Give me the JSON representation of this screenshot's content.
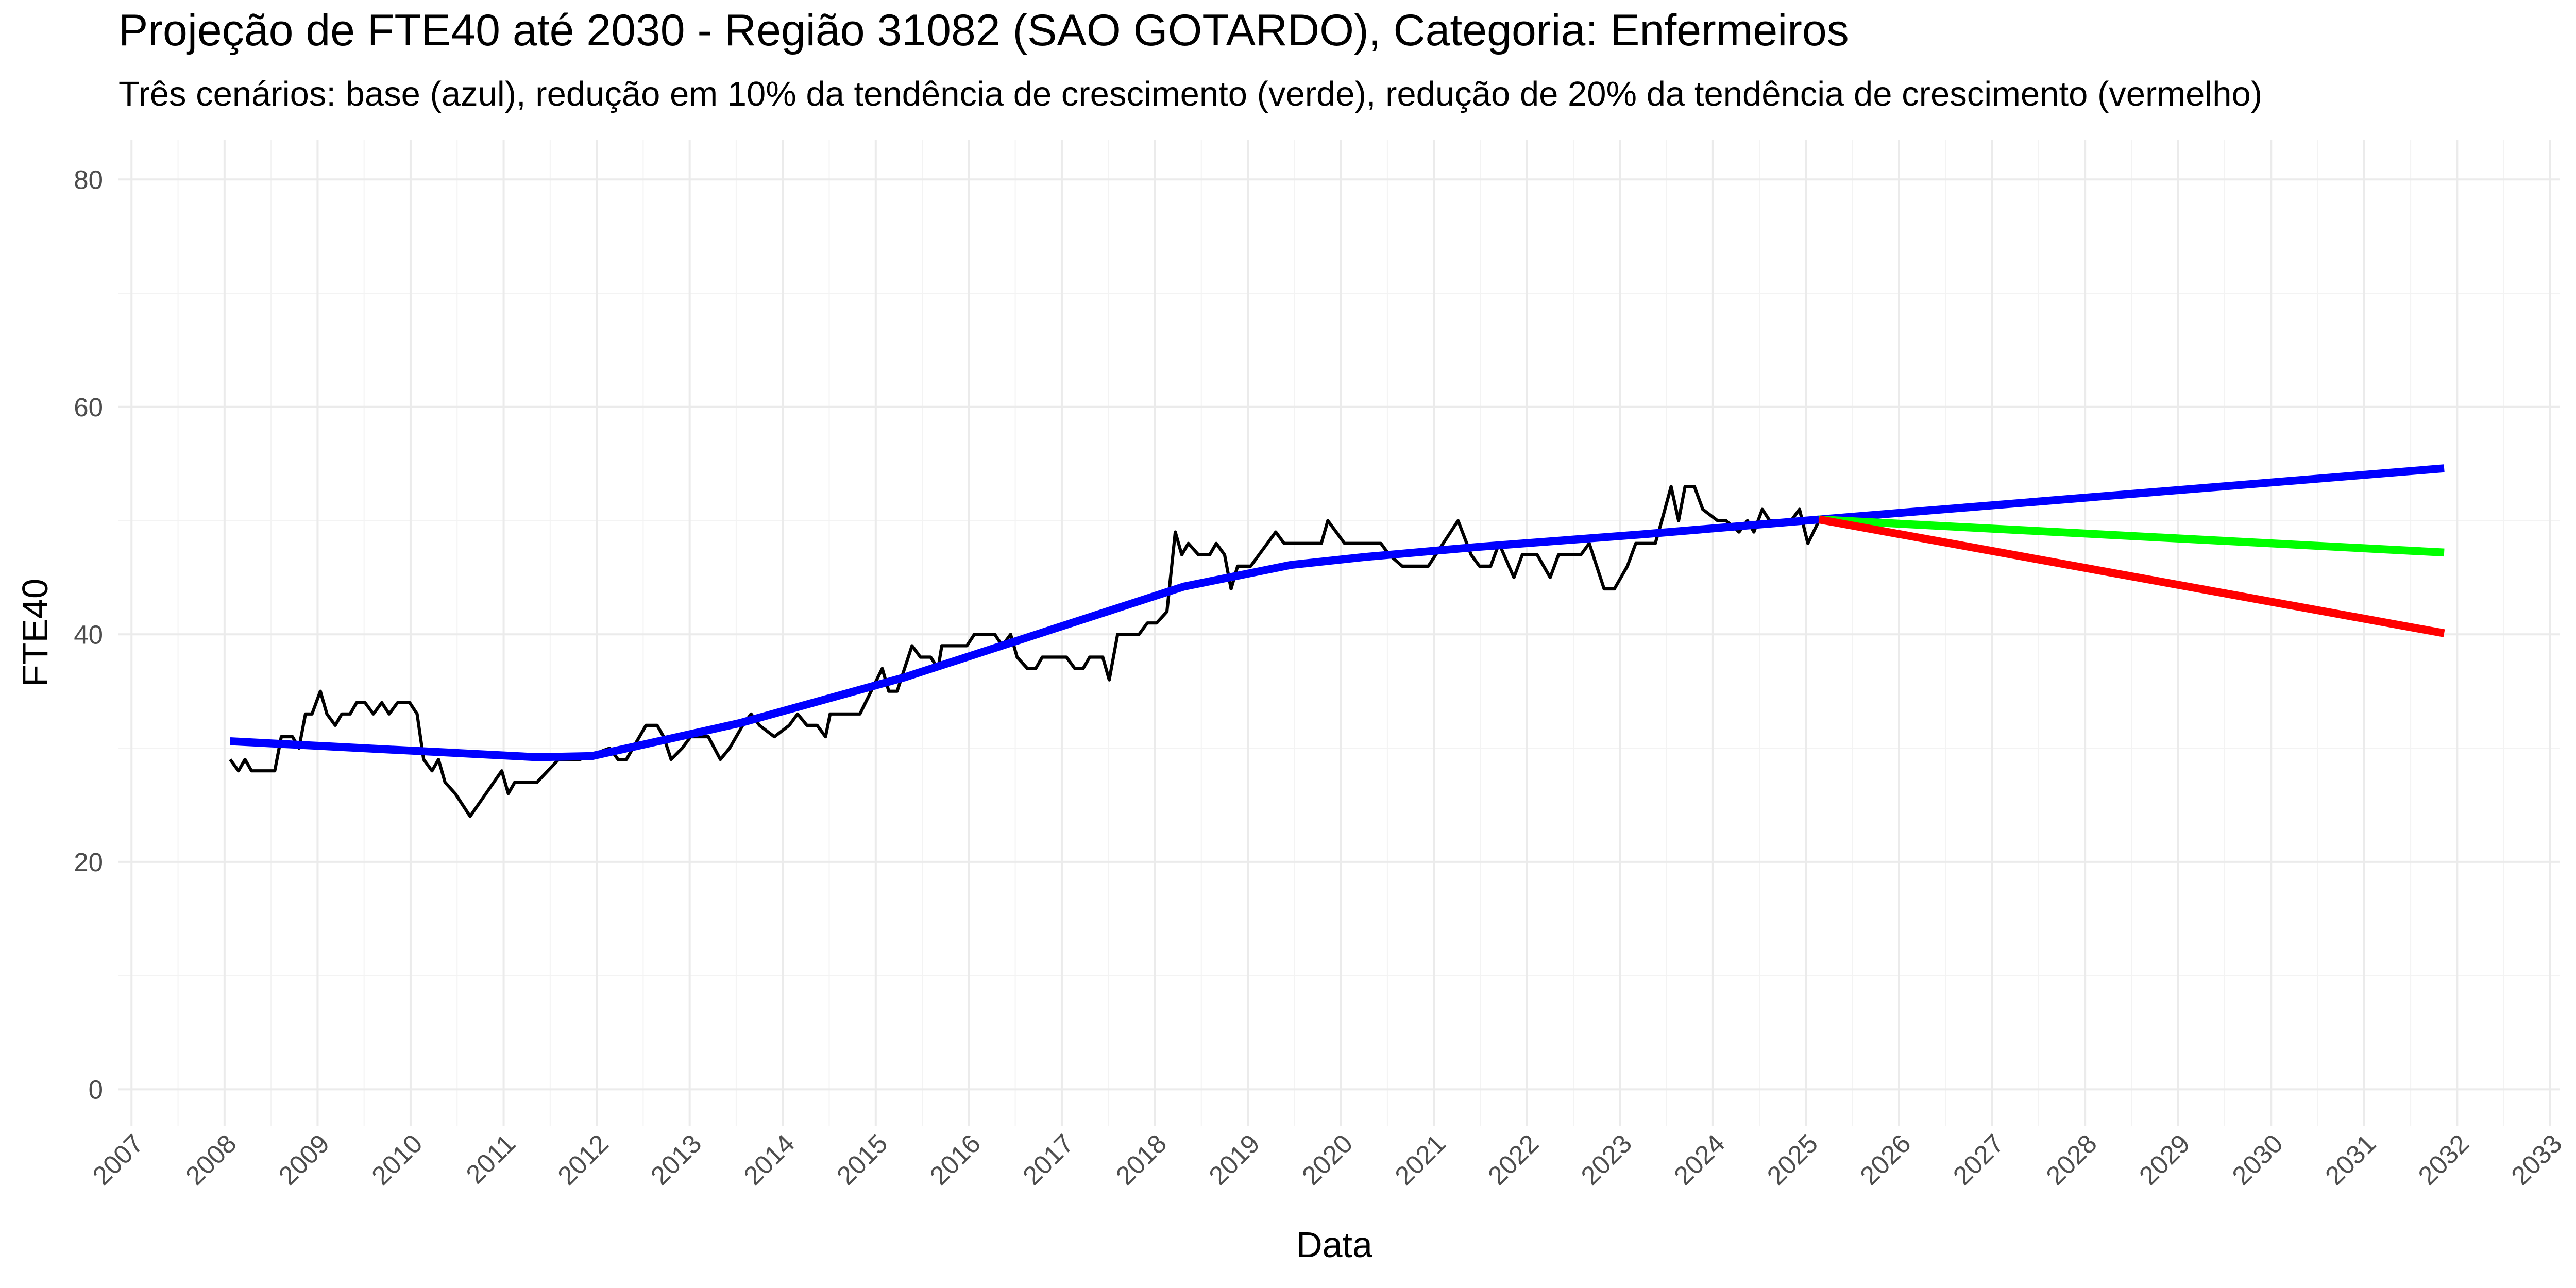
{
  "chart_data": {
    "type": "line",
    "title": "Projeção de FTE40 até 2030 - Região 31082 (SAO GOTARDO), Categoria: Enfermeiros",
    "subtitle": "Três cenários: base (azul), redução em 10% da tendência de crescimento (verde), redução de 20% da tendência de crescimento (vermelho)",
    "x_label": "Data",
    "y_label": "FTE40",
    "xlim": [
      2006.86,
      2033.1
    ],
    "ylim": [
      -3.2,
      83.5
    ],
    "xticks": [
      2007,
      2008,
      2009,
      2010,
      2011,
      2012,
      2013,
      2014,
      2015,
      2016,
      2017,
      2018,
      2019,
      2020,
      2021,
      2022,
      2023,
      2024,
      2025,
      2026,
      2027,
      2028,
      2029,
      2030,
      2031,
      2032,
      2033
    ],
    "xminor": [
      2007.5,
      2008.5,
      2009.5,
      2010.5,
      2011.5,
      2012.5,
      2013.5,
      2014.5,
      2015.5,
      2016.5,
      2017.5,
      2018.5,
      2019.5,
      2020.5,
      2021.5,
      2022.5,
      2023.5,
      2024.5,
      2025.5,
      2026.5,
      2027.5,
      2028.5,
      2029.5,
      2030.5,
      2031.5,
      2032.5
    ],
    "yticks": [
      0,
      20,
      40,
      60,
      80
    ],
    "yminor": [
      10,
      30,
      50,
      70
    ],
    "grid": true,
    "series": [
      {
        "color": "#000000",
        "width": 2,
        "x": [
          2008.06,
          2008.15,
          2008.22,
          2008.29,
          2008.54,
          2008.61,
          2008.73,
          2008.8,
          2008.87,
          2008.94,
          2009.03,
          2009.1,
          2009.19,
          2009.26,
          2009.35,
          2009.42,
          2009.51,
          2009.6,
          2009.69,
          2009.77,
          2009.86,
          2009.99,
          2010.07,
          2010.14,
          2010.23,
          2010.3,
          2010.37,
          2010.48,
          2010.64,
          2010.98,
          2011.05,
          2011.12,
          2011.36,
          2011.59,
          2011.82,
          2012.14,
          2012.23,
          2012.32,
          2012.53,
          2012.65,
          2012.72,
          2012.8,
          2012.92,
          2013.01,
          2013.2,
          2013.33,
          2013.43,
          2013.57,
          2013.66,
          2013.75,
          2013.91,
          2014.07,
          2014.16,
          2014.26,
          2014.37,
          2014.46,
          2014.51,
          2014.83,
          2014.95,
          2015.07,
          2015.14,
          2015.23,
          2015.39,
          2015.48,
          2015.59,
          2015.67,
          2015.71,
          2015.98,
          2016.06,
          2016.28,
          2016.36,
          2016.45,
          2016.52,
          2016.63,
          2016.72,
          2016.79,
          2017.05,
          2017.14,
          2017.23,
          2017.3,
          2017.44,
          2017.51,
          2017.6,
          2017.83,
          2017.92,
          2018.02,
          2018.13,
          2018.22,
          2018.29,
          2018.36,
          2018.47,
          2018.59,
          2018.66,
          2018.75,
          2018.82,
          2018.89,
          2019.03,
          2019.12,
          2019.21,
          2019.3,
          2019.39,
          2019.79,
          2019.86,
          2019.95,
          2020.04,
          2020.43,
          2020.52,
          2020.66,
          2020.94,
          2021.1,
          2021.26,
          2021.4,
          2021.49,
          2021.61,
          2021.7,
          2021.86,
          2021.95,
          2022.11,
          2022.25,
          2022.34,
          2022.58,
          2022.67,
          2022.83,
          2022.94,
          2023.08,
          2023.17,
          2023.38,
          2023.45,
          2023.55,
          2023.63,
          2023.7,
          2023.8,
          2023.89,
          2024.05,
          2024.14,
          2024.28,
          2024.37,
          2024.44,
          2024.53,
          2024.61,
          2024.84,
          2024.93,
          2025.02,
          2025.14
        ],
        "values": [
          29,
          28,
          29,
          28,
          28,
          31,
          31,
          30,
          33,
          33,
          35,
          33,
          32,
          33,
          33,
          34,
          34,
          33,
          34,
          33,
          34,
          34,
          33,
          29,
          28,
          29,
          27,
          26,
          24,
          28,
          26,
          27,
          27,
          29,
          29,
          30,
          29,
          29,
          32,
          32,
          31,
          29,
          30,
          31,
          31,
          29,
          30,
          32,
          33,
          32,
          31,
          32,
          33,
          32,
          32,
          31,
          33,
          33,
          35,
          37,
          35,
          35,
          39,
          38,
          38,
          37,
          39,
          39,
          40,
          40,
          39,
          40,
          38,
          37,
          37,
          38,
          38,
          37,
          37,
          38,
          38,
          36,
          40,
          40,
          41,
          41,
          42,
          49,
          47,
          48,
          47,
          47,
          48,
          47,
          44,
          46,
          46,
          47,
          48,
          49,
          48,
          48,
          50,
          49,
          48,
          48,
          47,
          46,
          46,
          48,
          50,
          47,
          46,
          46,
          48,
          45,
          47,
          47,
          45,
          47,
          47,
          48,
          44,
          44,
          46,
          48,
          48,
          50,
          53,
          50,
          53,
          53,
          51,
          50,
          50,
          49,
          50,
          49,
          51,
          50,
          50,
          51,
          48,
          50
        ]
      },
      {
        "color": "#0000ff",
        "width": 5,
        "x": [
          2008.06,
          2011.36,
          2011.95,
          2013.54,
          2015.3,
          2017.07,
          2018.31,
          2019.46,
          2020.25,
          2021.49,
          2023.25,
          2025.14,
          2031.86
        ],
        "values": [
          30.6,
          29.2,
          29.3,
          32.2,
          36.2,
          40.9,
          44.2,
          46.1,
          46.8,
          47.7,
          48.8,
          50.1,
          54.6
        ]
      },
      {
        "color": "#00ff00",
        "width": 5,
        "x": [
          2025.14,
          2031.86
        ],
        "values": [
          50.1,
          47.2
        ]
      },
      {
        "color": "#ff0000",
        "width": 5,
        "x": [
          2025.14,
          2031.86
        ],
        "values": [
          50.1,
          40.1
        ]
      }
    ]
  }
}
